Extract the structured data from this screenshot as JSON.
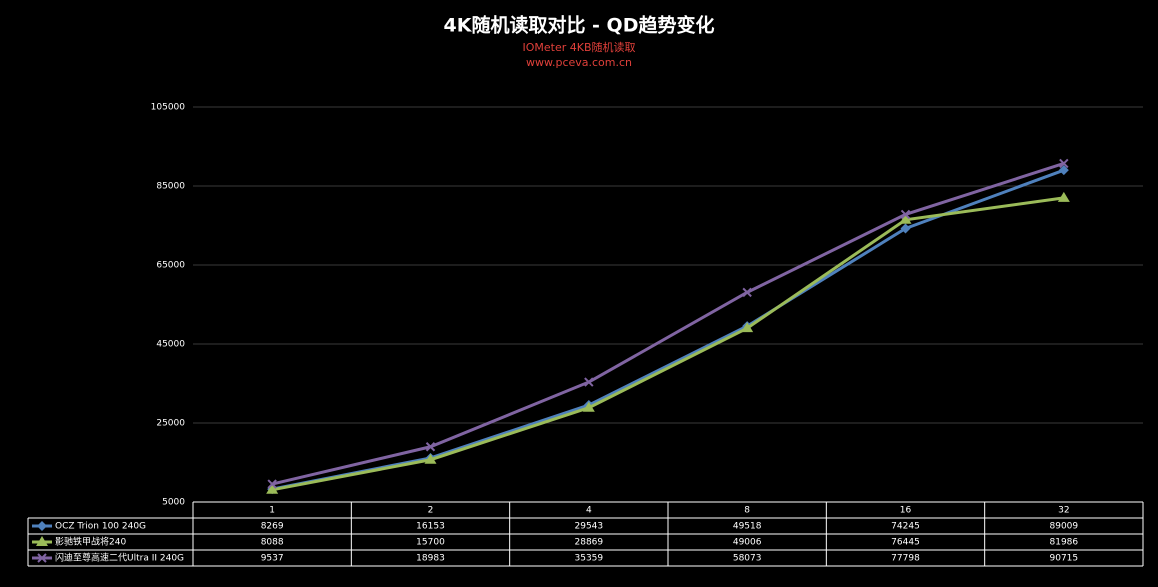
{
  "chart_data": {
    "type": "line",
    "title": "4K随机读取对比 - QD趋势变化",
    "subtitle": "IOMeter 4KB随机读取",
    "subtitle2": "www.pceva.com.cn",
    "categories": [
      "1",
      "2",
      "4",
      "8",
      "16",
      "32"
    ],
    "series": [
      {
        "name": "OCZ Trion 100 240G",
        "color": "#4f81bd",
        "marker": "diamond",
        "values": [
          8269,
          16153,
          29543,
          49518,
          74245,
          89009
        ]
      },
      {
        "name": "影驰铁甲战将240",
        "color": "#9bbb59",
        "marker": "triangle",
        "values": [
          8088,
          15700,
          28869,
          49006,
          76445,
          81986
        ]
      },
      {
        "name": "闪迪至尊高速二代Ultra II 240G",
        "color": "#8064a2",
        "marker": "x",
        "values": [
          9537,
          18983,
          35359,
          58073,
          77798,
          90715
        ]
      }
    ],
    "ylim": [
      5000,
      105000
    ],
    "yticks": [
      5000,
      25000,
      45000,
      65000,
      85000,
      105000
    ],
    "grid": true
  }
}
